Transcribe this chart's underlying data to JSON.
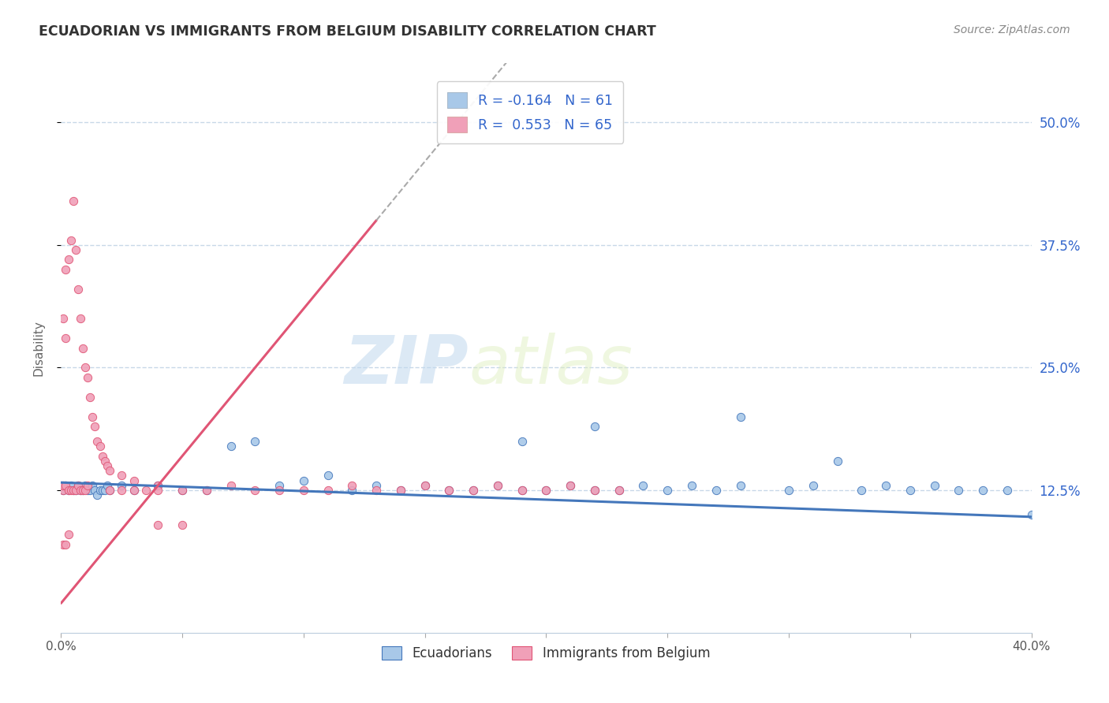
{
  "title": "ECUADORIAN VS IMMIGRANTS FROM BELGIUM DISABILITY CORRELATION CHART",
  "source": "Source: ZipAtlas.com",
  "ylabel": "Disability",
  "ytick_labels": [
    "12.5%",
    "25.0%",
    "37.5%",
    "50.0%"
  ],
  "ytick_values": [
    0.125,
    0.25,
    0.375,
    0.5
  ],
  "xlim": [
    0.0,
    0.4
  ],
  "ylim": [
    -0.02,
    0.56
  ],
  "legend_r1": "R = -0.164",
  "legend_n1": "N = 61",
  "legend_r2": "R =  0.553",
  "legend_n2": "N = 65",
  "watermark_zip": "ZIP",
  "watermark_atlas": "atlas",
  "scatter_blue_color": "#a8c8e8",
  "scatter_pink_color": "#f0a0b8",
  "line_blue_color": "#4477bb",
  "line_pink_color": "#e05575",
  "legend_text_color": "#3366cc",
  "title_color": "#333333",
  "grid_color": "#c8d8e8",
  "background_color": "#ffffff",
  "blue_scatter_x": [
    0.001,
    0.002,
    0.003,
    0.004,
    0.005,
    0.006,
    0.007,
    0.008,
    0.009,
    0.01,
    0.011,
    0.012,
    0.013,
    0.014,
    0.015,
    0.016,
    0.017,
    0.018,
    0.019,
    0.02,
    0.025,
    0.03,
    0.04,
    0.05,
    0.06,
    0.07,
    0.08,
    0.09,
    0.1,
    0.11,
    0.12,
    0.13,
    0.14,
    0.15,
    0.16,
    0.17,
    0.18,
    0.19,
    0.2,
    0.21,
    0.22,
    0.23,
    0.24,
    0.25,
    0.26,
    0.27,
    0.28,
    0.3,
    0.31,
    0.32,
    0.33,
    0.34,
    0.35,
    0.36,
    0.37,
    0.38,
    0.39,
    0.4,
    0.28,
    0.19,
    0.22
  ],
  "blue_scatter_y": [
    0.125,
    0.13,
    0.125,
    0.13,
    0.125,
    0.125,
    0.13,
    0.125,
    0.125,
    0.13,
    0.125,
    0.125,
    0.13,
    0.125,
    0.12,
    0.125,
    0.125,
    0.125,
    0.13,
    0.125,
    0.13,
    0.125,
    0.13,
    0.125,
    0.125,
    0.17,
    0.175,
    0.13,
    0.135,
    0.14,
    0.125,
    0.13,
    0.125,
    0.13,
    0.125,
    0.125,
    0.13,
    0.125,
    0.125,
    0.13,
    0.125,
    0.125,
    0.13,
    0.125,
    0.13,
    0.125,
    0.13,
    0.125,
    0.13,
    0.155,
    0.125,
    0.13,
    0.125,
    0.13,
    0.125,
    0.125,
    0.125,
    0.1,
    0.2,
    0.175,
    0.19
  ],
  "pink_scatter_x": [
    0.001,
    0.001,
    0.001,
    0.002,
    0.002,
    0.002,
    0.003,
    0.003,
    0.004,
    0.004,
    0.005,
    0.005,
    0.006,
    0.006,
    0.007,
    0.007,
    0.008,
    0.008,
    0.009,
    0.009,
    0.01,
    0.01,
    0.011,
    0.011,
    0.012,
    0.013,
    0.014,
    0.015,
    0.016,
    0.017,
    0.018,
    0.019,
    0.02,
    0.02,
    0.025,
    0.025,
    0.03,
    0.03,
    0.035,
    0.04,
    0.04,
    0.05,
    0.06,
    0.07,
    0.08,
    0.09,
    0.1,
    0.11,
    0.12,
    0.13,
    0.14,
    0.15,
    0.16,
    0.17,
    0.18,
    0.19,
    0.2,
    0.21,
    0.22,
    0.23,
    0.001,
    0.002,
    0.003,
    0.04,
    0.05
  ],
  "pink_scatter_y": [
    0.125,
    0.3,
    0.13,
    0.35,
    0.28,
    0.13,
    0.36,
    0.125,
    0.38,
    0.125,
    0.42,
    0.125,
    0.37,
    0.125,
    0.33,
    0.13,
    0.3,
    0.125,
    0.27,
    0.125,
    0.25,
    0.125,
    0.24,
    0.13,
    0.22,
    0.2,
    0.19,
    0.175,
    0.17,
    0.16,
    0.155,
    0.15,
    0.145,
    0.125,
    0.14,
    0.125,
    0.135,
    0.125,
    0.125,
    0.13,
    0.125,
    0.125,
    0.125,
    0.13,
    0.125,
    0.125,
    0.125,
    0.125,
    0.13,
    0.125,
    0.125,
    0.13,
    0.125,
    0.125,
    0.13,
    0.125,
    0.125,
    0.13,
    0.125,
    0.125,
    0.07,
    0.07,
    0.08,
    0.09,
    0.09
  ]
}
